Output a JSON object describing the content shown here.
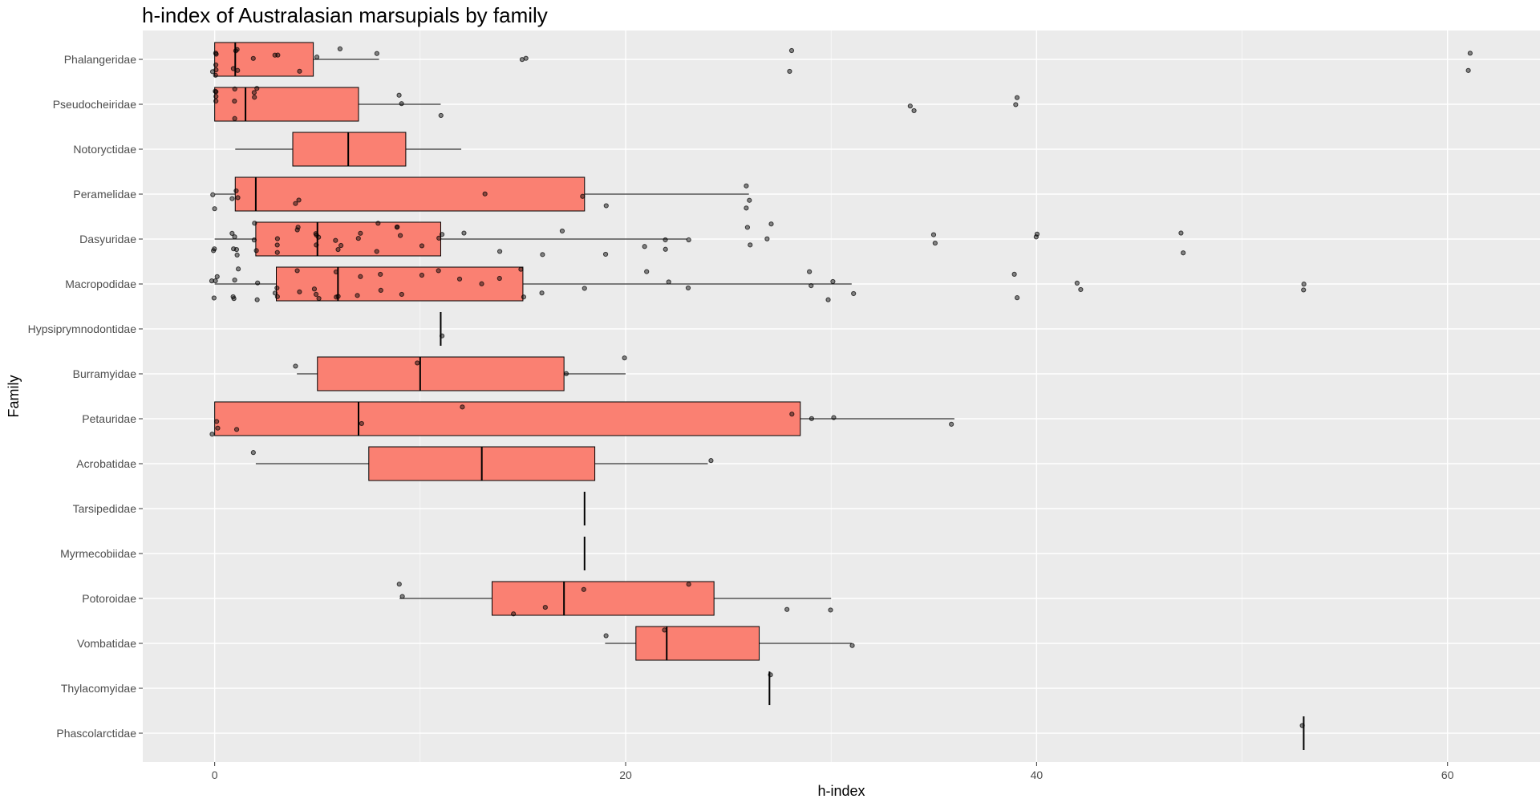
{
  "chart_data": {
    "type": "boxplot",
    "title": "h-index of Australasian marsupials by family",
    "xlabel": "h-index",
    "ylabel": "Family",
    "xlim": [
      -3.5,
      64.5
    ],
    "x_ticks": [
      0,
      20,
      40,
      60
    ],
    "grid": true,
    "box_fill": "#fa8072",
    "panel_background": "#ebebeb",
    "grid_color": "#ffffff",
    "point_color": "#000000",
    "categories": [
      "Phalangeridae",
      "Pseudocheiridae",
      "Notoryctidae",
      "Peramelidae",
      "Dasyuridae",
      "Macropodidae",
      "Hypsiprymnodontidae",
      "Burramyidae",
      "Petauridae",
      "Acrobatidae",
      "Tarsipedidae",
      "Myrmecobiidae",
      "Potoroidae",
      "Vombatidae",
      "Thylacomyidae",
      "Phascolarctidae"
    ],
    "boxes": [
      {
        "family": "Phalangeridae",
        "whisker_low": 0,
        "q1": 0,
        "median": 1,
        "q3": 4.8,
        "whisker_high": 8
      },
      {
        "family": "Pseudocheiridae",
        "whisker_low": 0,
        "q1": 0,
        "median": 1.5,
        "q3": 7,
        "whisker_high": 11
      },
      {
        "family": "Notoryctidae",
        "whisker_low": 1,
        "q1": 3.8,
        "median": 6.5,
        "q3": 9.3,
        "whisker_high": 12
      },
      {
        "family": "Peramelidae",
        "whisker_low": 0,
        "q1": 1,
        "median": 2,
        "q3": 18,
        "whisker_high": 26
      },
      {
        "family": "Dasyuridae",
        "whisker_low": 0,
        "q1": 2,
        "median": 5,
        "q3": 11,
        "whisker_high": 23
      },
      {
        "family": "Macropodidae",
        "whisker_low": 0,
        "q1": 3,
        "median": 6,
        "q3": 15,
        "whisker_high": 31
      },
      {
        "family": "Hypsiprymnodontidae",
        "whisker_low": 11,
        "q1": 11,
        "median": 11,
        "q3": 11,
        "whisker_high": 11
      },
      {
        "family": "Burramyidae",
        "whisker_low": 4,
        "q1": 5,
        "median": 10,
        "q3": 17,
        "whisker_high": 20
      },
      {
        "family": "Petauridae",
        "whisker_low": 0,
        "q1": 0,
        "median": 7,
        "q3": 28.5,
        "whisker_high": 36
      },
      {
        "family": "Acrobatidae",
        "whisker_low": 2,
        "q1": 7.5,
        "median": 13,
        "q3": 18.5,
        "whisker_high": 24
      },
      {
        "family": "Tarsipedidae",
        "whisker_low": 18,
        "q1": 18,
        "median": 18,
        "q3": 18,
        "whisker_high": 18
      },
      {
        "family": "Myrmecobiidae",
        "whisker_low": 18,
        "q1": 18,
        "median": 18,
        "q3": 18,
        "whisker_high": 18
      },
      {
        "family": "Potoroidae",
        "whisker_low": 9,
        "q1": 13.5,
        "median": 17,
        "q3": 24.3,
        "whisker_high": 30
      },
      {
        "family": "Vombatidae",
        "whisker_low": 19,
        "q1": 20.5,
        "median": 22,
        "q3": 26.5,
        "whisker_high": 31
      },
      {
        "family": "Thylacomyidae",
        "whisker_low": 27,
        "q1": 27,
        "median": 27,
        "q3": 27,
        "whisker_high": 27
      },
      {
        "family": "Phascolarctidae",
        "whisker_low": 53,
        "q1": 53,
        "median": 53,
        "q3": 53,
        "whisker_high": 53
      }
    ],
    "points": [
      {
        "family": "Phalangeridae",
        "values": [
          0,
          0,
          0,
          0,
          0,
          0,
          1,
          1,
          1,
          1,
          2,
          3,
          3,
          4,
          5,
          6,
          8,
          15,
          15,
          28,
          28,
          61,
          61
        ]
      },
      {
        "family": "Pseudocheiridae",
        "values": [
          0,
          0,
          0,
          0,
          1,
          1,
          1,
          2,
          2,
          2,
          9,
          9,
          11,
          34,
          34,
          39,
          39
        ]
      },
      {
        "family": "Peramelidae",
        "values": [
          0,
          0,
          1,
          1,
          1,
          4,
          4,
          13,
          18,
          19,
          26,
          26,
          26
        ]
      },
      {
        "family": "Dasyuridae",
        "values": [
          0,
          0,
          1,
          1,
          1,
          1,
          1,
          2,
          2,
          2,
          3,
          3,
          3,
          4,
          4,
          5,
          5,
          5,
          5,
          6,
          6,
          6,
          7,
          7,
          8,
          8,
          9,
          9,
          9,
          10,
          11,
          11,
          12,
          14,
          16,
          17,
          19,
          21,
          22,
          22,
          23,
          26,
          26,
          27,
          27,
          35,
          35,
          40,
          40,
          47,
          47
        ]
      },
      {
        "family": "Macropodidae",
        "values": [
          0,
          0,
          0,
          0,
          1,
          1,
          1,
          1,
          2,
          2,
          3,
          3,
          3,
          4,
          4,
          5,
          5,
          5,
          6,
          6,
          6,
          7,
          7,
          8,
          8,
          9,
          10,
          11,
          12,
          13,
          14,
          15,
          15,
          16,
          18,
          21,
          22,
          23,
          29,
          29,
          30,
          30,
          31,
          39,
          39,
          42,
          42,
          53,
          53
        ]
      },
      {
        "family": "Hypsiprymnodontidae",
        "values": [
          11
        ]
      },
      {
        "family": "Burramyidae",
        "values": [
          4,
          10,
          17,
          20
        ]
      },
      {
        "family": "Petauridae",
        "values": [
          0,
          0,
          0,
          1,
          7,
          12,
          28,
          29,
          30,
          36
        ]
      },
      {
        "family": "Acrobatidae",
        "values": [
          2,
          24
        ]
      },
      {
        "family": "Potoroidae",
        "values": [
          9,
          9,
          14.5,
          16,
          18,
          23,
          28,
          30
        ]
      },
      {
        "family": "Vombatidae",
        "values": [
          19,
          22,
          31
        ]
      },
      {
        "family": "Thylacomyidae",
        "values": [
          27
        ]
      },
      {
        "family": "Phascolarctidae",
        "values": [
          53
        ]
      }
    ]
  }
}
